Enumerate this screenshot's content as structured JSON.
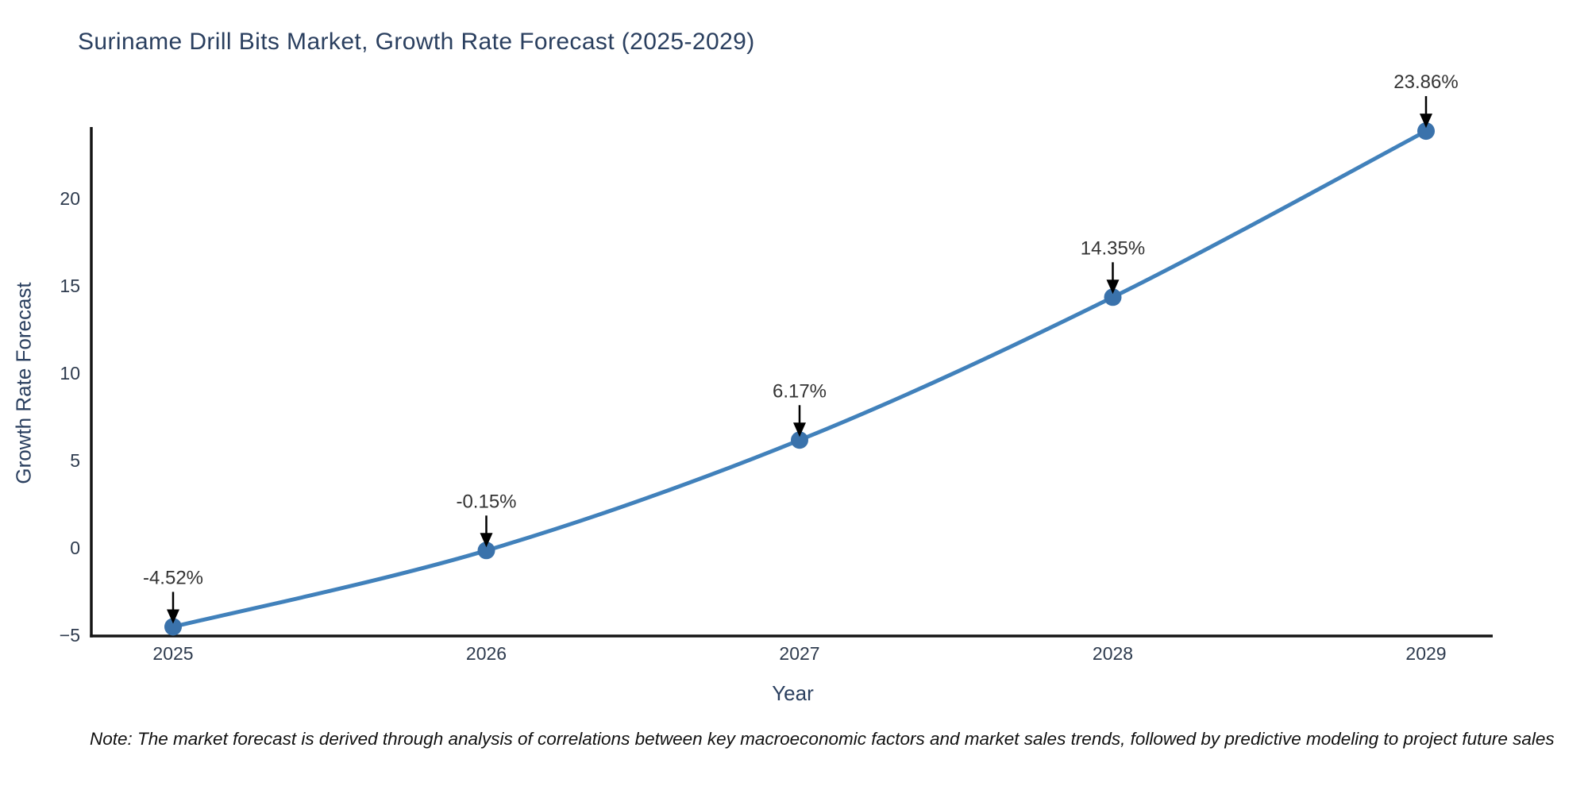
{
  "title": "Suriname Drill Bits Market, Growth Rate Forecast (2025-2029)",
  "note": "Note: The market forecast is derived through analysis of correlations between key macroeconomic factors and market sales trends, followed by predictive modeling to project future sales",
  "chart_data": {
    "type": "line",
    "title": "Suriname Drill Bits Market, Growth Rate Forecast (2025-2029)",
    "xlabel": "Year",
    "ylabel": "Growth Rate Forecast",
    "x": [
      2025,
      2026,
      2027,
      2028,
      2029
    ],
    "xtick_labels": [
      "2025",
      "2026",
      "2027",
      "2028",
      "2029"
    ],
    "series": [
      {
        "name": "Growth Rate Forecast",
        "values": [
          -4.52,
          -0.15,
          6.17,
          14.35,
          23.86
        ],
        "point_labels": [
          "-4.52%",
          "-0.15%",
          "6.17%",
          "14.35%",
          "23.86%"
        ]
      }
    ],
    "yticks": [
      -5,
      0,
      5,
      10,
      15,
      20
    ],
    "ytick_labels": [
      "−5",
      "0",
      "5",
      "10",
      "15",
      "20"
    ],
    "ylim": [
      -5,
      24.2
    ],
    "grid": false,
    "legend_position": "none",
    "curve": "spline",
    "annotation_arrows": true
  },
  "colors": {
    "background": "#ffffff",
    "line": "#4181bb",
    "marker": "#3a72ab",
    "axis_line": "#151515",
    "arrow": "#000000",
    "title_text": "#2a3f5f",
    "axis_title_text": "#2a3f5f",
    "tick_text": "#2e3b4e",
    "annotation_text": "#333333",
    "note_text": "#111111"
  }
}
